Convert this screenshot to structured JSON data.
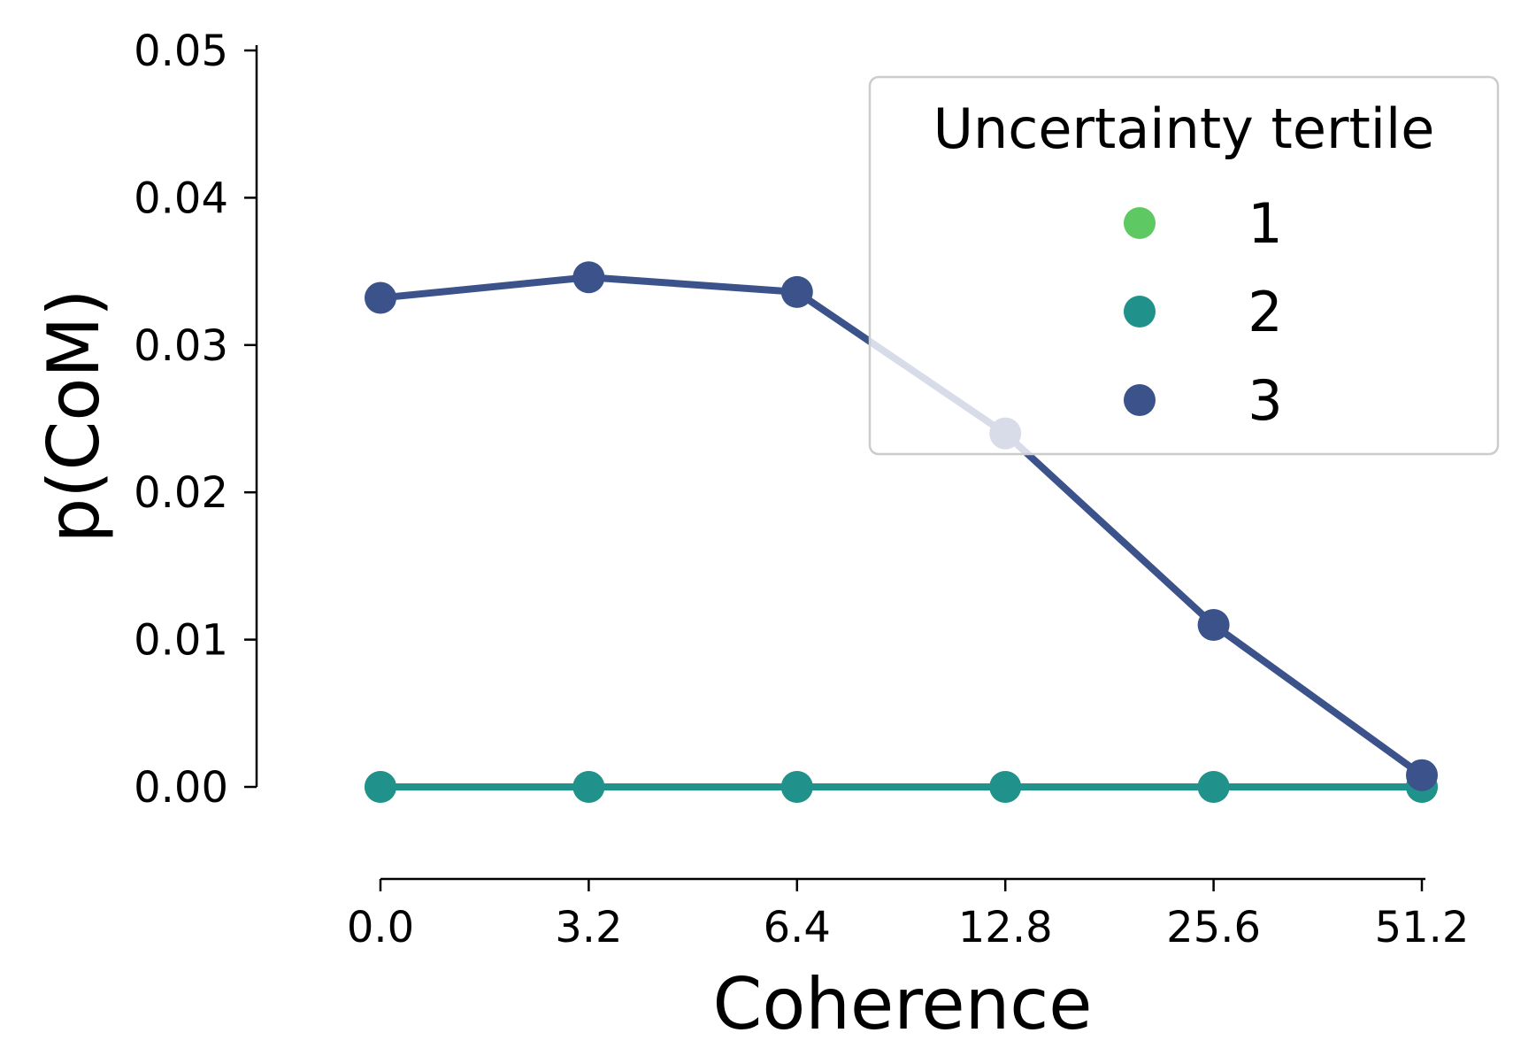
{
  "chart_data": {
    "type": "line",
    "title": "",
    "xlabel": "Coherence",
    "ylabel": "p(CoM)",
    "categories": [
      "0.0",
      "3.2",
      "6.4",
      "12.8",
      "25.6",
      "51.2"
    ],
    "yticks": [
      "0.00",
      "0.01",
      "0.02",
      "0.03",
      "0.04",
      "0.05"
    ],
    "ylim": [
      0,
      0.05
    ],
    "grid": false,
    "legend": {
      "title": "Uncertainty tertile",
      "placement": "top-right"
    },
    "series": [
      {
        "name": "1",
        "color": "#5ec962",
        "values": [
          0,
          0,
          0,
          0,
          0,
          0
        ]
      },
      {
        "name": "2",
        "color": "#21918c",
        "values": [
          0,
          0,
          0,
          0,
          0,
          0
        ]
      },
      {
        "name": "3",
        "color": "#3b528b",
        "values": [
          0.0332,
          0.0346,
          0.0336,
          0.024,
          0.011,
          0.0008
        ]
      }
    ]
  }
}
